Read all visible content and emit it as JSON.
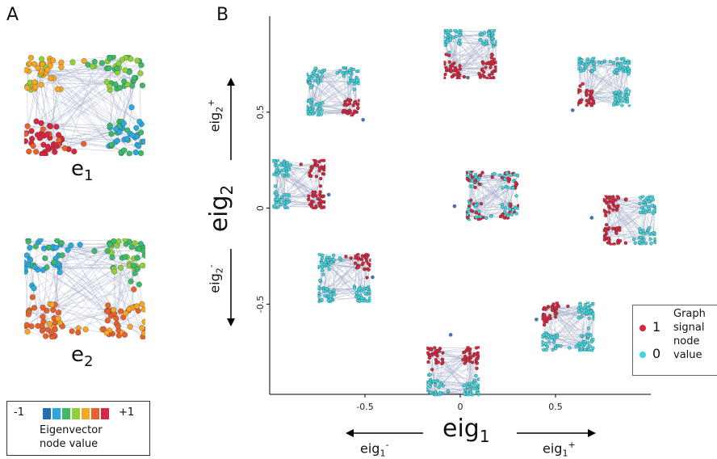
{
  "panel_a": {
    "label": "A",
    "networks": [
      {
        "label_main": "e",
        "label_sub": "1"
      },
      {
        "label_main": "e",
        "label_sub": "2"
      }
    ],
    "colorbar": {
      "min_label": "-1",
      "max_label": "+1",
      "title_line1": "Eigenvector",
      "title_line2": "node value",
      "colors": [
        "#1f6fb8",
        "#2aa9e0",
        "#3cba6a",
        "#8fcf3c",
        "#f5a623",
        "#e8612c",
        "#d7263d"
      ]
    }
  },
  "panel_b": {
    "label": "B",
    "ylabel_main": "eig",
    "ylabel_sub": "2",
    "xlabel_main": "eig",
    "xlabel_sub": "1",
    "y_plus_main": "eig",
    "y_plus_sub": "2",
    "y_plus_sup": "+",
    "y_minus_main": "eig",
    "y_minus_sub": "2",
    "y_minus_sup": "-",
    "x_minus_main": "eig",
    "x_minus_sub": "1",
    "x_minus_sup": "-",
    "x_plus_main": "eig",
    "x_plus_sub": "1",
    "x_plus_sup": "+",
    "legend": {
      "items": [
        {
          "value": "1",
          "color": "#d7263d"
        },
        {
          "value": "0",
          "color": "#3fd6e0"
        }
      ],
      "title_lines": [
        "Graph",
        "signal",
        "node",
        "value"
      ]
    }
  },
  "chart_data": {
    "type": "scatter",
    "xlabel": "eig1",
    "ylabel": "eig2",
    "xlim": [
      -1.0,
      1.0
    ],
    "ylim": [
      -0.97,
      1.0
    ],
    "x_ticks": [
      -0.5,
      0,
      0.5
    ],
    "y_ticks": [
      0.5,
      0,
      -0.5
    ],
    "x_tick_labels": [
      "-0.5",
      "0",
      "0.5"
    ],
    "y_tick_labels": [
      "0.5",
      "0",
      "-0.5"
    ],
    "points": [
      {
        "x": 0.04,
        "y": 0.68
      },
      {
        "x": -0.51,
        "y": 0.46
      },
      {
        "x": 0.59,
        "y": 0.51
      },
      {
        "x": -0.69,
        "y": 0.07
      },
      {
        "x": -0.03,
        "y": 0.01
      },
      {
        "x": 0.69,
        "y": -0.05
      },
      {
        "x": -0.46,
        "y": -0.36
      },
      {
        "x": 0.4,
        "y": -0.58
      },
      {
        "x": -0.05,
        "y": -0.66
      }
    ],
    "graph_signals": [
      {
        "dot_x": 0.04,
        "dot_y": 0.68,
        "red_corners": [
          "bl",
          "br"
        ]
      },
      {
        "dot_x": -0.51,
        "dot_y": 0.46,
        "red_corners": [
          "br"
        ]
      },
      {
        "dot_x": 0.59,
        "dot_y": 0.51,
        "red_corners": [
          "bl"
        ]
      },
      {
        "dot_x": -0.69,
        "dot_y": 0.07,
        "red_corners": [
          "tr",
          "br"
        ]
      },
      {
        "dot_x": -0.03,
        "dot_y": 0.01,
        "red_corners": [
          "mix"
        ]
      },
      {
        "dot_x": 0.69,
        "dot_y": -0.05,
        "red_corners": [
          "tl",
          "bl"
        ]
      },
      {
        "dot_x": -0.46,
        "dot_y": -0.36,
        "red_corners": [
          "tr"
        ]
      },
      {
        "dot_x": 0.4,
        "dot_y": -0.58,
        "red_corners": [
          "tl"
        ]
      },
      {
        "dot_x": -0.05,
        "dot_y": -0.66,
        "red_corners": [
          "tl",
          "tr"
        ]
      }
    ]
  }
}
